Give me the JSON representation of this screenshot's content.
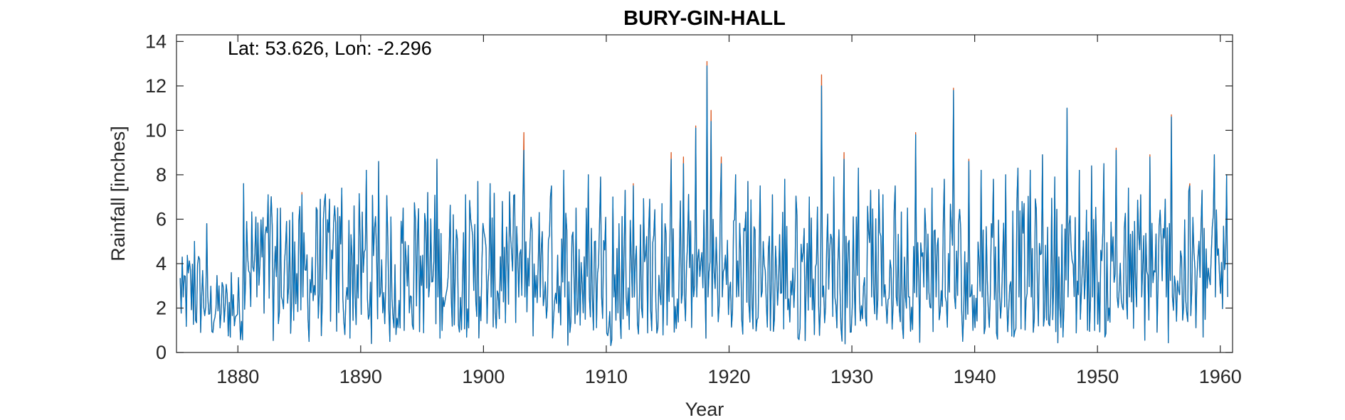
{
  "chart_data": {
    "type": "line",
    "title": "BURY-GIN-HALL",
    "xlabel": "Year",
    "ylabel": "Rainfall [inches]",
    "annotation": "Lat: 53.626, Lon: -2.296",
    "xlim": [
      1875.0,
      1961.0
    ],
    "ylim": [
      0,
      14.3
    ],
    "xticks": [
      1880,
      1890,
      1900,
      1910,
      1920,
      1930,
      1940,
      1950,
      1960
    ],
    "yticks": [
      0,
      2,
      4,
      6,
      8,
      10,
      12,
      14
    ],
    "grid": false,
    "series": [
      {
        "color": "#D95319",
        "x": [
          1875.5,
          1876.5,
          1877.5,
          1878.5,
          1879.5,
          1880.5,
          1881.5,
          1882.5,
          1883.5,
          1884.5,
          1885.2,
          1886.5,
          1887.5,
          1888.5,
          1889.5,
          1890.5,
          1891.5,
          1892.5,
          1893.5,
          1894.5,
          1895.5,
          1896.2,
          1897.5,
          1898.5,
          1899.5,
          1900.5,
          1901.5,
          1902.5,
          1903.3,
          1904.5,
          1905.5,
          1906.5,
          1907.5,
          1908.5,
          1909.5,
          1910.5,
          1911.5,
          1912.2,
          1913.5,
          1914.5,
          1915.3,
          1916.3,
          1917.3,
          1918.2,
          1918.5,
          1919.4,
          1920.5,
          1921.5,
          1922.5,
          1923.5,
          1924.5,
          1925.5,
          1926.5,
          1927.5,
          1928.5,
          1929.4,
          1930.5,
          1931.5,
          1932.5,
          1933.5,
          1934.5,
          1935.2,
          1936.5,
          1937.5,
          1938.3,
          1939.5,
          1940.5,
          1941.5,
          1942.5,
          1943.5,
          1944.5,
          1945.5,
          1946.5,
          1947.5,
          1948.5,
          1949.5,
          1950.5,
          1951.5,
          1952.5,
          1953.5,
          1954.3,
          1955.5,
          1956.0,
          1957.5,
          1958.5,
          1959.5,
          1960.5
        ],
        "values": [
          4.3,
          5.0,
          5.8,
          3.0,
          3.6,
          7.6,
          6.1,
          7.1,
          6.5,
          6.3,
          7.2,
          6.4,
          6.9,
          7.4,
          6.6,
          8.2,
          8.6,
          6.1,
          6.5,
          6.0,
          7.2,
          8.7,
          6.2,
          7.1,
          7.7,
          7.6,
          6.8,
          7.1,
          9.9,
          6.3,
          7.5,
          8.2,
          6.5,
          8.0,
          7.9,
          7.0,
          7.3,
          7.6,
          6.9,
          6.7,
          9.0,
          8.8,
          10.2,
          13.1,
          10.9,
          8.8,
          8.0,
          7.7,
          7.5,
          7.1,
          7.8,
          6.2,
          7.0,
          12.5,
          7.9,
          9.0,
          8.3,
          7.3,
          7.1,
          7.5,
          6.5,
          9.9,
          7.4,
          7.8,
          11.9,
          8.7,
          8.2,
          7.8,
          8.0,
          8.3,
          8.2,
          8.9,
          7.9,
          11.0,
          8.2,
          8.4,
          8.5,
          9.2,
          7.4,
          7.1,
          8.9,
          6.9,
          10.7,
          7.6,
          7.3,
          8.9,
          8.0
        ]
      },
      {
        "color": "#0072BD",
        "x": [
          1875.5,
          1876.5,
          1877.5,
          1878.5,
          1879.5,
          1880.5,
          1881.5,
          1882.5,
          1883.5,
          1884.5,
          1885.2,
          1886.5,
          1887.5,
          1888.5,
          1889.5,
          1890.5,
          1891.5,
          1892.5,
          1893.5,
          1894.5,
          1895.5,
          1896.2,
          1897.5,
          1898.5,
          1899.5,
          1900.5,
          1901.5,
          1902.5,
          1903.3,
          1904.5,
          1905.5,
          1906.5,
          1907.5,
          1908.5,
          1909.5,
          1910.5,
          1911.5,
          1912.2,
          1913.5,
          1914.5,
          1915.3,
          1916.3,
          1917.3,
          1918.2,
          1918.5,
          1919.4,
          1920.5,
          1921.5,
          1922.5,
          1923.5,
          1924.5,
          1925.5,
          1926.5,
          1927.5,
          1928.5,
          1929.4,
          1930.5,
          1931.5,
          1932.5,
          1933.5,
          1934.5,
          1935.2,
          1936.5,
          1937.5,
          1938.3,
          1939.5,
          1940.5,
          1941.5,
          1942.5,
          1943.5,
          1944.5,
          1945.5,
          1946.5,
          1947.5,
          1948.5,
          1949.5,
          1950.5,
          1951.5,
          1952.5,
          1953.5,
          1954.3,
          1955.5,
          1956.0,
          1957.5,
          1958.5,
          1959.5,
          1960.5
        ],
        "values": [
          4.3,
          5.0,
          5.8,
          3.0,
          3.6,
          7.6,
          6.1,
          7.1,
          6.5,
          6.3,
          7.1,
          6.4,
          6.9,
          7.4,
          6.6,
          8.2,
          8.6,
          6.1,
          6.5,
          6.0,
          7.2,
          8.7,
          6.2,
          7.1,
          7.7,
          7.6,
          6.8,
          7.1,
          9.1,
          6.3,
          7.5,
          8.2,
          6.5,
          8.0,
          7.9,
          7.0,
          7.3,
          7.5,
          6.9,
          6.7,
          8.7,
          8.5,
          10.1,
          12.9,
          10.4,
          8.5,
          8.0,
          7.7,
          7.5,
          7.1,
          7.8,
          6.2,
          7.0,
          12.0,
          7.9,
          8.7,
          8.3,
          7.3,
          7.1,
          7.5,
          6.5,
          9.8,
          7.4,
          7.8,
          11.8,
          8.6,
          8.2,
          7.8,
          8.0,
          8.3,
          8.2,
          8.9,
          7.9,
          11.0,
          8.2,
          8.4,
          8.5,
          9.1,
          7.4,
          7.1,
          8.8,
          6.9,
          10.6,
          7.5,
          7.3,
          8.9,
          8.0
        ]
      }
    ]
  }
}
